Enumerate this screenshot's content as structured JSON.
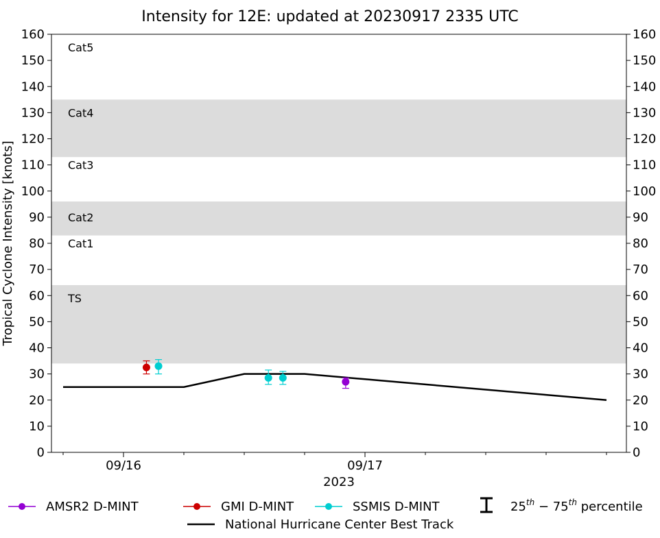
{
  "chart_data": {
    "type": "scatter",
    "title": "Intensity for 12E: updated at 20230917 2335 UTC",
    "ylabel": "Tropical Cyclone Intensity [knots]",
    "xlabel": "2023",
    "ylim": [
      0,
      160
    ],
    "xlim": [
      -0.25,
      2.1
    ],
    "yticks": [
      0,
      10,
      20,
      30,
      40,
      50,
      60,
      70,
      80,
      90,
      100,
      110,
      120,
      130,
      140,
      150,
      160
    ],
    "xticks": [
      {
        "value": 0,
        "label": "09/16"
      },
      {
        "value": 1,
        "label": "09/17"
      }
    ],
    "minor_xticks": [
      -0.25,
      0.25,
      0.5,
      0.75,
      1.25,
      1.5,
      1.75,
      2.0
    ],
    "category_bands": [
      {
        "label": "TS",
        "from": 34,
        "to": 64,
        "shaded": true,
        "label_y": 59
      },
      {
        "label": "Cat1",
        "from": 64,
        "to": 83,
        "shaded": false,
        "label_y": 80
      },
      {
        "label": "Cat2",
        "from": 83,
        "to": 96,
        "shaded": true,
        "label_y": 90
      },
      {
        "label": "Cat3",
        "from": 96,
        "to": 113,
        "shaded": false,
        "label_y": 110
      },
      {
        "label": "Cat4",
        "from": 113,
        "to": 135,
        "shaded": true,
        "label_y": 130
      },
      {
        "label": "Cat5",
        "from": 135,
        "to": 160,
        "shaded": false,
        "label_y": 155
      }
    ],
    "best_track": {
      "name": "National Hurricane Center Best Track",
      "color": "#000000",
      "x": [
        -0.25,
        0.25,
        0.5,
        0.75,
        1.0,
        1.25,
        1.5,
        1.75,
        2.0
      ],
      "y": [
        25,
        25,
        30,
        30,
        28,
        26,
        24,
        22,
        20
      ]
    },
    "series": [
      {
        "name": "AMSR2 D-MINT",
        "color": "#9400d3",
        "points": [
          {
            "x": 0.92,
            "y": 27,
            "low": 24.5,
            "high": 28.5
          }
        ]
      },
      {
        "name": "GMI D-MINT",
        "color": "#cc0000",
        "points": [
          {
            "x": 0.095,
            "y": 32.5,
            "low": 30,
            "high": 35
          }
        ]
      },
      {
        "name": "SSMIS D-MINT",
        "color": "#00ced1",
        "points": [
          {
            "x": 0.145,
            "y": 33,
            "low": 30,
            "high": 35.5
          },
          {
            "x": 0.6,
            "y": 28.5,
            "low": 26,
            "high": 31.5
          },
          {
            "x": 0.66,
            "y": 28.5,
            "low": 26,
            "high": 31
          }
        ]
      }
    ],
    "legend": {
      "position": "bottom",
      "entries": [
        "AMSR2 D-MINT",
        "GMI D-MINT",
        "SSMIS D-MINT"
      ],
      "percentile_label_base": "25",
      "percentile_sup1": "th",
      "percentile_mid": " − 75",
      "percentile_sup2": "th",
      "percentile_tail": " percentile",
      "best_track_label": "National Hurricane Center Best Track"
    },
    "band_color": "#dcdcdc"
  }
}
